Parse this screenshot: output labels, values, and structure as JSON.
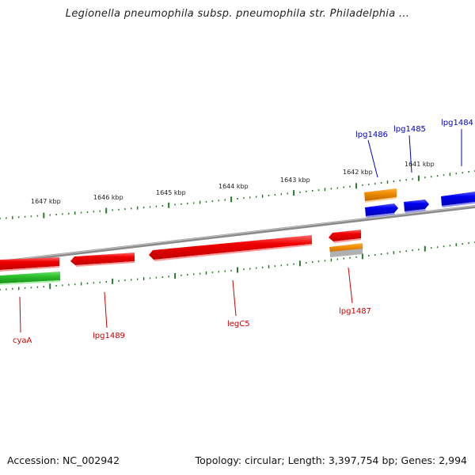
{
  "title": "Legionella pneumophila subsp. pneumophila str. Philadelphia ...",
  "footer": {
    "accession": "Accession: NC_002942",
    "summary": "Topology: circular; Length: 3,397,754 bp; Genes: 2,994"
  },
  "colors": {
    "forward_gene": "#0000ee",
    "reverse_gene": "#ee0000",
    "rna_gene": "#f08c00",
    "pseudo_gene": "#2cc02c",
    "backbone": "#888888",
    "ticks": "#2a7a2a",
    "forward_label": "#0000cc",
    "reverse_label": "#cc0000"
  },
  "scale_labels": [
    "1641 kbp",
    "1642 kbp",
    "1643 kbp",
    "1644 kbp",
    "1645 kbp",
    "1646 kbp",
    "1647 kbp"
  ],
  "gene_labels": {
    "forward": [
      "lpg1484",
      "lpg1485",
      "lpg1486"
    ],
    "reverse": [
      "cyaA",
      "lpg1489",
      "legC5",
      "lpg1487"
    ]
  }
}
